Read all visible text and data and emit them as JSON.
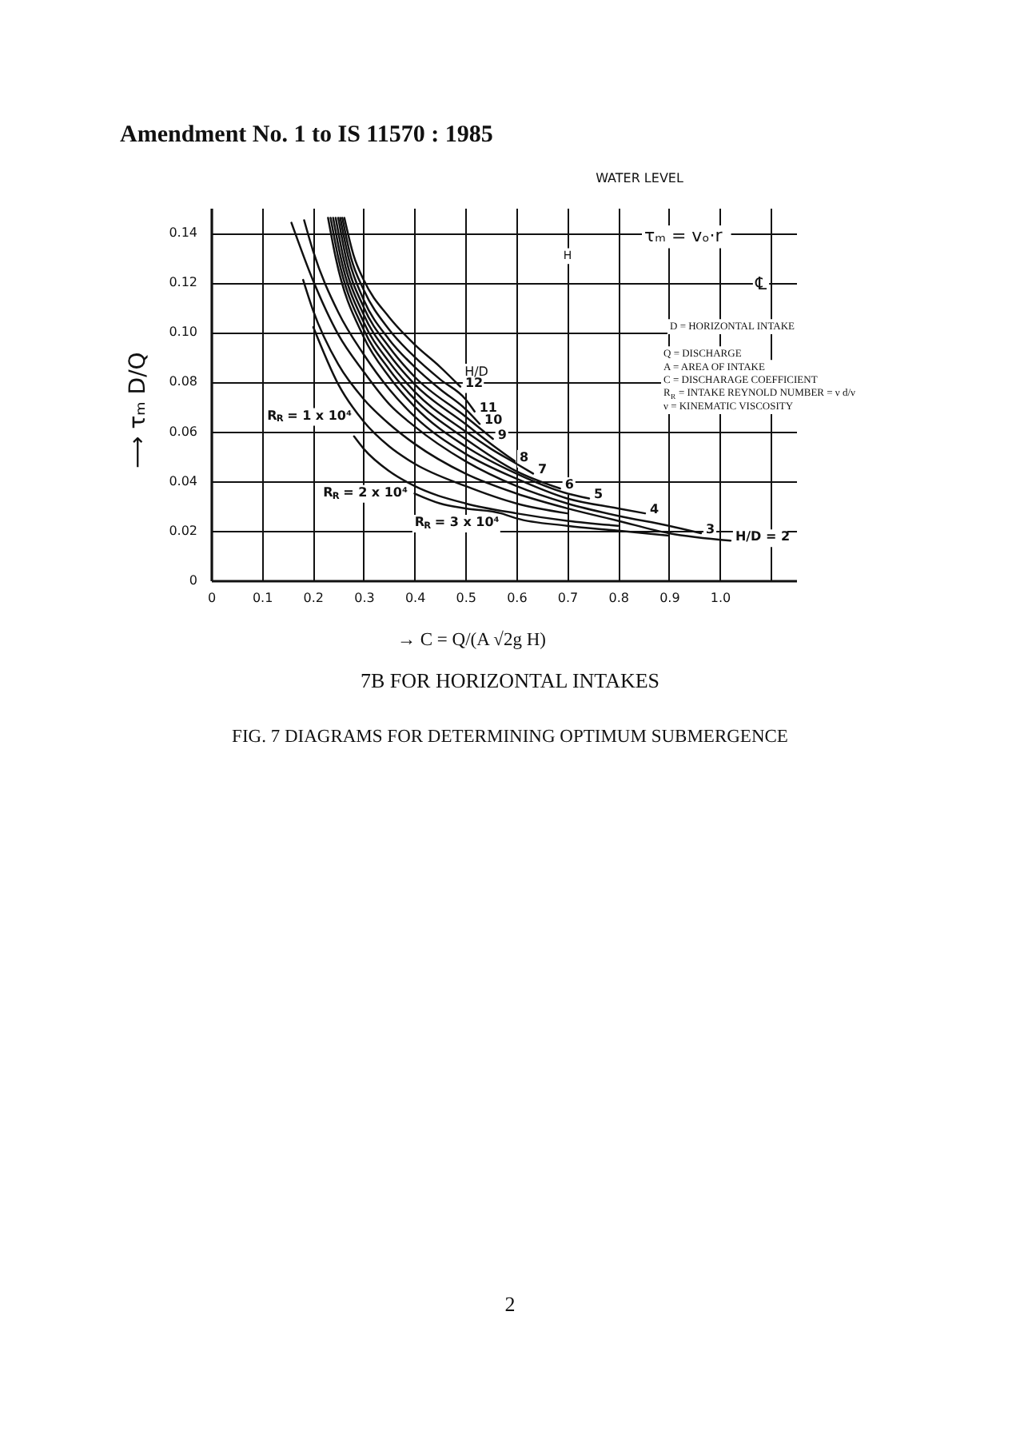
{
  "chart_data": {
    "type": "line",
    "title": "Amendment No. 1 to IS 11570 : 1985",
    "xlabel": "→ C = Q/(A √2g H)",
    "ylabel": "⟶ τₘ D/Q",
    "xlim": [
      0,
      1.15
    ],
    "ylim": [
      0,
      0.15
    ],
    "xticks": [
      0,
      0.1,
      0.2,
      0.3,
      0.4,
      0.5,
      0.6,
      0.7,
      0.8,
      0.9,
      {
        "value": 1.0,
        "label": "1.0"
      },
      {
        "value": 1.1,
        "label": null
      }
    ],
    "yticks": [
      0,
      0.02,
      0.04,
      0.06,
      0.08,
      {
        "value": 0.1,
        "label": "0.10"
      },
      0.12,
      0.14
    ],
    "grid": true,
    "series": [
      {
        "name": "12",
        "color": "#111111",
        "x": [
          0.262,
          0.28,
          0.3,
          0.35,
          0.4,
          0.45,
          0.49
        ],
        "values": [
          0.146,
          0.131,
          0.121,
          0.106,
          0.095,
          0.086,
          0.078
        ]
      },
      {
        "name": "11",
        "color": "#111111",
        "x": [
          0.258,
          0.275,
          0.3,
          0.35,
          0.4,
          0.45,
          0.5,
          0.518
        ],
        "values": [
          0.146,
          0.13,
          0.117,
          0.101,
          0.09,
          0.081,
          0.073,
          0.068
        ]
      },
      {
        "name": "10",
        "color": "#111111",
        "x": [
          0.254,
          0.27,
          0.3,
          0.35,
          0.4,
          0.45,
          0.5,
          0.528
        ],
        "values": [
          0.146,
          0.13,
          0.113,
          0.097,
          0.086,
          0.077,
          0.069,
          0.063
        ]
      },
      {
        "name": "9",
        "color": "#111111",
        "x": [
          0.25,
          0.265,
          0.3,
          0.35,
          0.4,
          0.5,
          0.554
        ],
        "values": [
          0.146,
          0.13,
          0.11,
          0.094,
          0.082,
          0.066,
          0.057
        ]
      },
      {
        "name": "8",
        "color": "#111111",
        "x": [
          0.245,
          0.26,
          0.3,
          0.35,
          0.4,
          0.5,
          0.55,
          0.597
        ],
        "values": [
          0.146,
          0.13,
          0.107,
          0.091,
          0.079,
          0.063,
          0.055,
          0.048
        ]
      },
      {
        "name": "7",
        "color": "#111111",
        "x": [
          0.24,
          0.255,
          0.3,
          0.35,
          0.4,
          0.5,
          0.55,
          0.6,
          0.633
        ],
        "values": [
          0.146,
          0.13,
          0.104,
          0.088,
          0.076,
          0.06,
          0.053,
          0.047,
          0.043
        ]
      },
      {
        "name": "6",
        "color": "#111111",
        "x": [
          0.235,
          0.25,
          0.3,
          0.35,
          0.4,
          0.5,
          0.6,
          0.686
        ],
        "values": [
          0.146,
          0.13,
          0.101,
          0.085,
          0.073,
          0.057,
          0.044,
          0.037
        ]
      },
      {
        "name": "5",
        "color": "#111111",
        "x": [
          0.23,
          0.245,
          0.3,
          0.35,
          0.4,
          0.5,
          0.6,
          0.7,
          0.743
        ],
        "values": [
          0.146,
          0.13,
          0.098,
          0.082,
          0.07,
          0.054,
          0.043,
          0.035,
          0.033
        ]
      },
      {
        "name": "4",
        "color": "#111111",
        "x": [
          0.183,
          0.2,
          0.25,
          0.3,
          0.35,
          0.4,
          0.5,
          0.6,
          0.7,
          0.8,
          0.853
        ],
        "values": [
          0.145,
          0.133,
          0.108,
          0.091,
          0.077,
          0.066,
          0.051,
          0.041,
          0.033,
          0.029,
          0.027
        ]
      },
      {
        "name": "3",
        "color": "#111111",
        "x": [
          0.158,
          0.2,
          0.25,
          0.3,
          0.35,
          0.4,
          0.5,
          0.6,
          0.7,
          0.8,
          0.9,
          0.963
        ],
        "values": [
          0.144,
          0.121,
          0.099,
          0.084,
          0.071,
          0.062,
          0.048,
          0.038,
          0.031,
          0.026,
          0.022,
          0.019
        ]
      },
      {
        "name": "H/D = 2",
        "color": "#111111",
        "x": [
          0.181,
          0.2,
          0.25,
          0.3,
          0.35,
          0.4,
          0.5,
          0.6,
          0.7,
          0.8,
          0.9,
          1.021
        ],
        "values": [
          0.121,
          0.109,
          0.087,
          0.073,
          0.063,
          0.055,
          0.043,
          0.035,
          0.029,
          0.024,
          0.019,
          0.016
        ]
      },
      {
        "color": "#111111",
        "x": [
          0.201,
          0.25,
          0.3,
          0.35,
          0.4,
          0.5,
          0.6,
          0.7
        ],
        "values": [
          0.102,
          0.079,
          0.064,
          0.054,
          0.047,
          0.038,
          0.031,
          0.027
        ]
      },
      {
        "color": "#111111",
        "x": [
          0.281,
          0.3,
          0.35,
          0.4,
          0.5,
          0.6,
          0.7,
          0.8
        ],
        "values": [
          0.058,
          0.053,
          0.044,
          0.038,
          0.031,
          0.027,
          0.024,
          0.022
        ]
      },
      {
        "color": "#111111",
        "x": [
          0.4,
          0.45,
          0.5,
          0.57,
          0.6,
          0.7,
          0.8,
          0.9
        ],
        "values": [
          0.035,
          0.031,
          0.029,
          0.027,
          0.025,
          0.022,
          0.02,
          0.018
        ]
      }
    ],
    "annotations": [
      "WATER LEVEL",
      "H",
      "τₘ = vₒ·r",
      "℄",
      "D = HORIZONTAL INTAKE",
      "Q = DISCHARGE",
      "A = AREA OF INTAKE",
      "C = DISCHARAGE COEFFICIENT",
      "R$_{R}$ = INTAKE REYNOLD NUMBER = ν d/ν",
      "ν = KINEMATIC VISCOSITY",
      "H/D",
      {
        "text": "R$_{R}$ = 1 x 10⁴",
        "x": 0.28,
        "y": 0.07
      },
      {
        "text": "R$_{R}$ = 2 x 10⁴",
        "x": 0.39,
        "y": 0.039
      },
      {
        "text": "R$_{R}$ = 3 x 10⁴",
        "x": 0.57,
        "y": 0.027
      },
      "7B  FOR HORIZONTAL INTAKES",
      "FIG. 7  DIAGRAMS FOR DETERMINING OPTIMUM SUBMERGENCE",
      "2"
    ]
  }
}
